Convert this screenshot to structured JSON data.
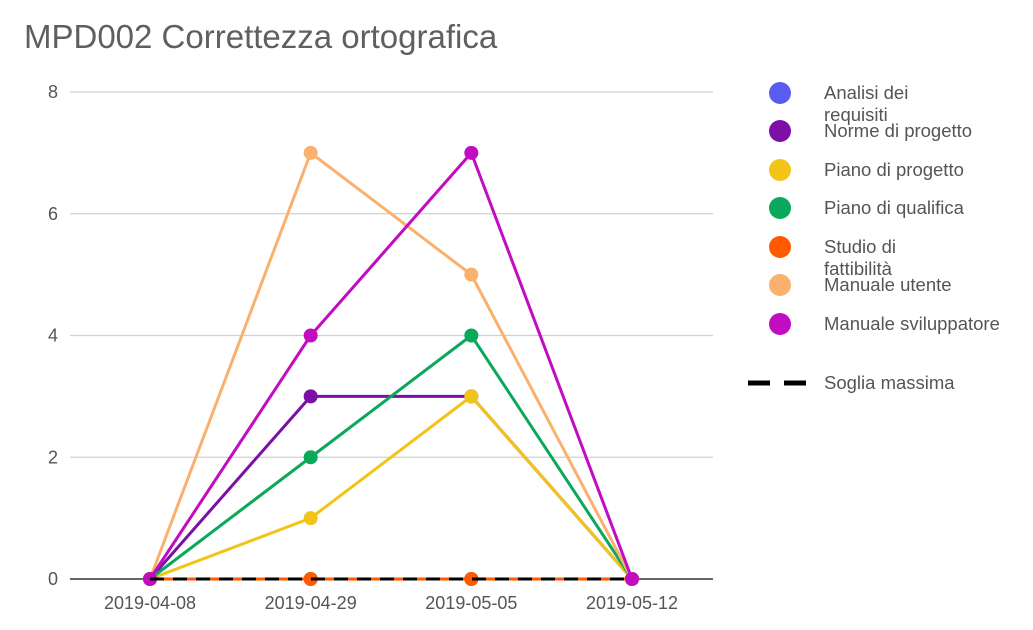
{
  "chart_data": {
    "type": "line",
    "title": "MPD002 Correttezza ortografica",
    "xlabel": "",
    "ylabel": "",
    "categories": [
      "2019-04-08",
      "2019-04-29",
      "2019-05-05",
      "2019-05-12"
    ],
    "ylim": [
      0,
      8
    ],
    "yticks": [
      0,
      2,
      4,
      6,
      8
    ],
    "grid": true,
    "legend_position": "right",
    "series": [
      {
        "name": "Analisi dei requisiti",
        "color": "#5a5cf0",
        "values": [
          0,
          0,
          0,
          0
        ]
      },
      {
        "name": "Norme di progetto",
        "color": "#7b0fa6",
        "values": [
          0,
          3,
          3,
          0
        ]
      },
      {
        "name": "Piano di progetto",
        "color": "#f2c418",
        "values": [
          0,
          1,
          3,
          0
        ]
      },
      {
        "name": "Piano di qualifica",
        "color": "#0aa85a",
        "values": [
          0,
          2,
          4,
          0
        ]
      },
      {
        "name": "Studio di fattibilità",
        "color": "#ff5a00",
        "values": [
          0,
          0,
          0,
          0
        ]
      },
      {
        "name": "Manuale utente",
        "color": "#fab16e",
        "values": [
          0,
          7,
          5,
          0
        ]
      },
      {
        "name": "Manuale sviluppatore",
        "color": "#c20cc2",
        "values": [
          0,
          4,
          7,
          0
        ]
      }
    ],
    "threshold": {
      "name": "Soglia massima",
      "color": "#000000",
      "value": 0,
      "style": "dashed"
    }
  }
}
